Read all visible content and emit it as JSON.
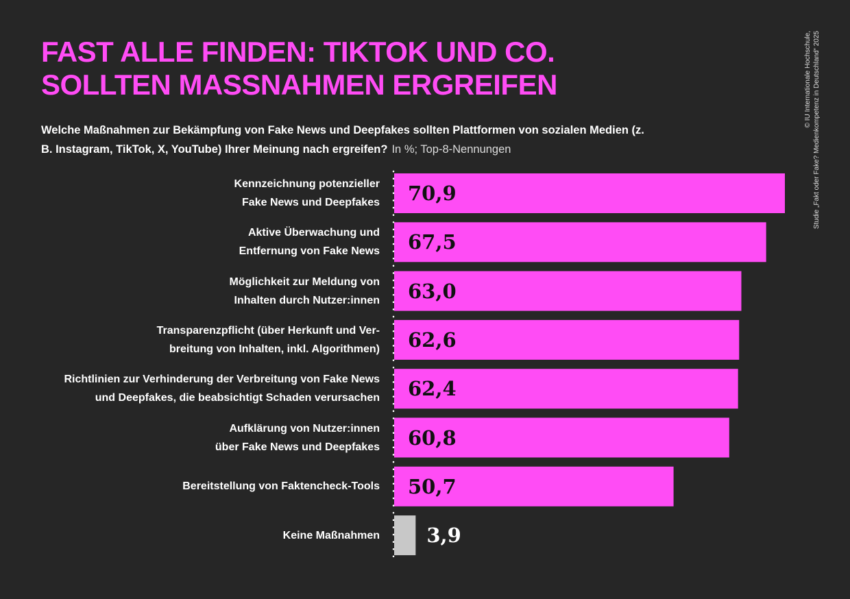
{
  "title_lines": [
    "FAST ALLE FINDEN: TIKTOK UND CO.",
    "SOLLTEN MASSNAHMEN ERGREIFEN"
  ],
  "subtitle": "Welche Maßnahmen zur Bekämpfung von Fake News und Deepfakes sollten Plattformen von sozialen Medien (z. B. Instagram, TikTok, X, YouTube) Ihrer Meinung nach ergreifen?",
  "subtitle_note": "In %; Top-8-Nennungen",
  "credit_lines": [
    "© IU Internationale Hochschule,",
    "Studie „Fakt oder Fake? Medienkompetenz in Deutschland“ 2025"
  ],
  "colors": {
    "background": "#262626",
    "accent": "#ff4cf5",
    "bar_main": "#ff4cf5",
    "bar_none": "#c8c8c8"
  },
  "chart_data": {
    "type": "bar",
    "orientation": "horizontal",
    "unit": "%",
    "categories": [
      "Kennzeichnung potenzieller\nFake News und Deepfakes",
      "Aktive Überwachung und\nEntfernung von Fake News",
      "Möglichkeit zur Meldung von\nInhalten durch Nutzer:innen",
      "Transparenzpflicht (über Herkunft und Ver-\nbreitung von Inhalten, inkl. Algorithmen)",
      "Richtlinien zur Verhinderung der Verbreitung von Fake News\nund Deepfakes, die beabsichtigt Schaden verursachen",
      "Aufklärung von Nutzer:innen\nüber Fake News und Deepfakes",
      "Bereitstellung von Faktencheck-Tools",
      "Keine Maßnahmen"
    ],
    "values": [
      70.9,
      67.5,
      63.0,
      62.6,
      62.4,
      60.8,
      50.7,
      3.9
    ],
    "value_labels": [
      "70,9",
      "67,5",
      "63,0",
      "62,6",
      "62,4",
      "60,8",
      "50,7",
      "3,9"
    ],
    "xlim": [
      0,
      71
    ],
    "grid": false,
    "legend": "none"
  }
}
